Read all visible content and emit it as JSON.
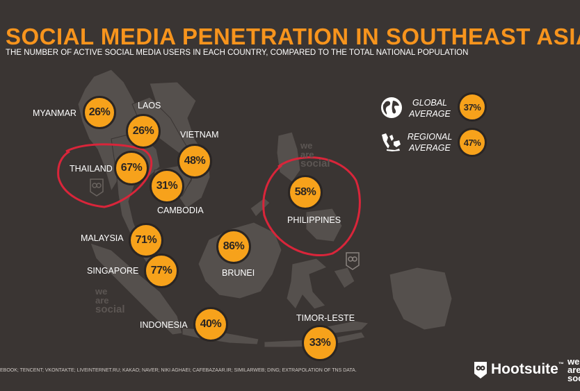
{
  "title": "SOCIAL MEDIA PENETRATION IN SOUTHEAST ASIA",
  "subtitle": "THE NUMBER OF ACTIVE SOCIAL MEDIA USERS IN EACH COUNTRY, COMPARED TO THE TOTAL NATIONAL POPULATION",
  "countries": {
    "myanmar": {
      "name": "MYANMAR",
      "value": "26%"
    },
    "laos": {
      "name": "LAOS",
      "value": "26%"
    },
    "vietnam": {
      "name": "VIETNAM",
      "value": "48%"
    },
    "thailand": {
      "name": "THAILAND",
      "value": "67%"
    },
    "cambodia": {
      "name": "CAMBODIA",
      "value": "31%"
    },
    "philippines": {
      "name": "PHILIPPINES",
      "value": "58%"
    },
    "malaysia": {
      "name": "MALAYSIA",
      "value": "71%"
    },
    "brunei": {
      "name": "BRUNEI",
      "value": "86%"
    },
    "singapore": {
      "name": "SINGAPORE",
      "value": "77%"
    },
    "indonesia": {
      "name": "INDONESIA",
      "value": "40%"
    },
    "timor_leste": {
      "name": "TIMOR-LESTE",
      "value": "33%"
    }
  },
  "legend": {
    "global": {
      "line1": "GLOBAL",
      "line2": "AVERAGE",
      "value": "37%",
      "icon": "globe-icon"
    },
    "regional": {
      "line1": "REGIONAL",
      "line2": "AVERAGE",
      "value": "47%",
      "icon": "region-map-icon"
    }
  },
  "watermark": {
    "line1": "we",
    "line2": "are",
    "line3": "social"
  },
  "source": "EBOOK; TENCENT; VKONTAKTE; LIVEINTERNET.RU; KAKAO; NAVER; NIKI AGHAEI; CAFEBAZAAR.IR; SIMILARWEB; DING; EXTRAPOLATION OF TNS DATA.",
  "brand": {
    "name": "Hootsuite",
    "tm": "™",
    "partner_line1": "we",
    "partner_line2": "are",
    "partner_line3": "soc"
  },
  "colors": {
    "background": "#3a3533",
    "land": "#55504d",
    "accent": "#f7941d",
    "circle": "#f7a21b",
    "annotation": "#d9253a"
  }
}
